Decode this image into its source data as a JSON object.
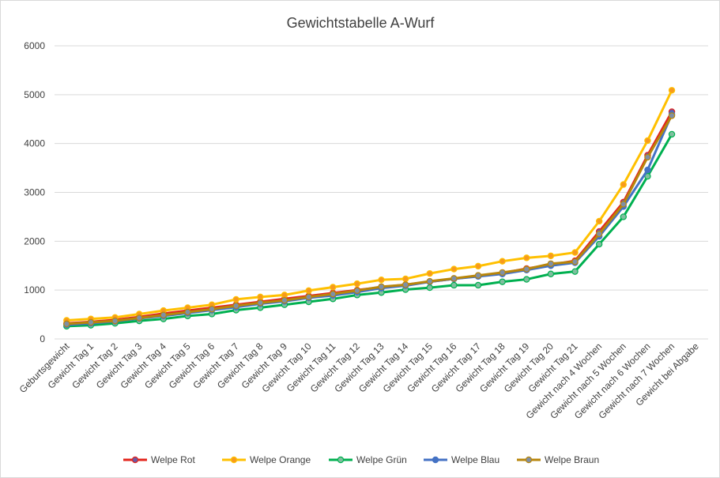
{
  "chart_data": {
    "type": "line",
    "title": "Gewichtstabelle A-Wurf",
    "xlabel": "",
    "ylabel": "",
    "ylim": [
      0,
      6000
    ],
    "yticks": [
      0,
      1000,
      2000,
      3000,
      4000,
      5000,
      6000
    ],
    "grid": true,
    "legend_position": "bottom",
    "categories": [
      "Geburtsgewicht",
      "Gewicht Tag 1",
      "Gewicht Tag 2",
      "Gewicht Tag 3",
      "Gewicht Tag 4",
      "Gewicht Tag 5",
      "Gewicht Tag 6",
      "Gewicht Tag 7",
      "Gewicht Tag 8",
      "Gewicht Tag 9",
      "Gewicht Tag 10",
      "Gewicht Tag 11",
      "Gewicht Tag 12",
      "Gewicht Tag 13",
      "Gewicht Tag 14",
      "Gewicht Tag 15",
      "Gewicht Tag 16",
      "Gewicht Tag 17",
      "Gewicht Tag 18",
      "Gewicht Tag 19",
      "Gewicht Tag 20",
      "Gewicht Tag 21",
      "Gewicht nach 4 Wochen",
      "Gewicht nach 5 Wochen",
      "Gewicht nach 6 Wochen",
      "Gewicht nach 7 Wochen",
      "Gewicht bei Abgabe"
    ],
    "series": [
      {
        "name": "Welpe Rot",
        "color": "#e3241b",
        "marker_color": "#6a5aa6",
        "values": [
          320,
          350,
          390,
          450,
          520,
          580,
          640,
          700,
          760,
          820,
          880,
          940,
          1000,
          1060,
          1110,
          1170,
          1230,
          1290,
          1350,
          1440,
          1520,
          1600,
          2200,
          2800,
          3760,
          4650,
          null
        ]
      },
      {
        "name": "Welpe Orange",
        "color": "#ffc000",
        "marker_color": "#f79a1e",
        "values": [
          380,
          410,
          440,
          510,
          580,
          640,
          700,
          810,
          860,
          900,
          990,
          1060,
          1130,
          1210,
          1230,
          1340,
          1430,
          1490,
          1590,
          1660,
          1700,
          1770,
          2410,
          3160,
          4060,
          5090,
          null
        ]
      },
      {
        "name": "Welpe Grün",
        "color": "#00b050",
        "marker_color": "#7fbf9f",
        "values": [
          260,
          280,
          320,
          370,
          410,
          470,
          510,
          590,
          640,
          700,
          760,
          820,
          900,
          950,
          1010,
          1050,
          1100,
          1100,
          1170,
          1220,
          1330,
          1380,
          1940,
          2500,
          3330,
          4190,
          null
        ]
      },
      {
        "name": "Welpe Blau",
        "color": "#4472c4",
        "marker_color": "#4472c4",
        "values": [
          290,
          320,
          360,
          420,
          470,
          530,
          590,
          650,
          720,
          770,
          840,
          890,
          960,
          1040,
          1090,
          1170,
          1230,
          1280,
          1330,
          1410,
          1500,
          1560,
          2100,
          2710,
          3460,
          4600,
          null
        ]
      },
      {
        "name": "Welpe Braun",
        "color": "#b8860b",
        "marker_color": "#7f8fa6",
        "values": [
          310,
          340,
          370,
          430,
          490,
          550,
          610,
          680,
          740,
          790,
          860,
          920,
          990,
          1070,
          1110,
          1180,
          1240,
          1300,
          1360,
          1430,
          1540,
          1580,
          2150,
          2760,
          3720,
          4570,
          null
        ]
      }
    ]
  }
}
